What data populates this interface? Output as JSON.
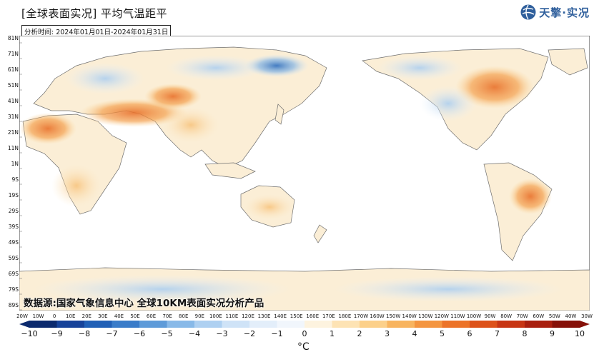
{
  "header": {
    "title": "[全球表面实况] 平均气温距平",
    "period": "分析时间: 2024年01月01日-2024年01月31日",
    "logo_text": "天擎·实况"
  },
  "map": {
    "lat_labels": [
      "81N",
      "71N",
      "61N",
      "51N",
      "41N",
      "31N",
      "21N",
      "11N",
      "1N",
      "9S",
      "19S",
      "29S",
      "39S",
      "49S",
      "59S",
      "69S",
      "79S",
      "89S"
    ],
    "lon_labels": [
      "20W",
      "10W",
      "0",
      "10E",
      "20E",
      "30E",
      "40E",
      "50E",
      "60E",
      "70E",
      "80E",
      "90E",
      "100E",
      "110E",
      "120E",
      "130E",
      "140E",
      "150E",
      "160E",
      "170E",
      "180E",
      "170W",
      "160W",
      "150W",
      "140W",
      "130W",
      "120W",
      "110W",
      "100W",
      "90W",
      "80W",
      "70W",
      "60W",
      "50W",
      "40W",
      "30W"
    ],
    "data_source": "数据源:国家气象信息中心  全球10KM表面实况分析产品"
  },
  "colorbar": {
    "labels": [
      "−10",
      "−9",
      "−8",
      "−7",
      "−6",
      "−5",
      "−4",
      "−3",
      "−2",
      "−1",
      "0",
      "1",
      "2",
      "3",
      "4",
      "5",
      "6",
      "7",
      "8",
      "9",
      "10"
    ],
    "colors": [
      "#0c2a6e",
      "#17439a",
      "#2160b6",
      "#3a7cc9",
      "#5e9bd9",
      "#88b9e8",
      "#aed0f1",
      "#cfe3f7",
      "#e3eefa",
      "#f1f6fc",
      "#fdf3df",
      "#fde3b4",
      "#fcd08a",
      "#f8b45f",
      "#f49540",
      "#ec7328",
      "#dd521a",
      "#c73514",
      "#a91f0f",
      "#861109"
    ],
    "unit": "°C"
  }
}
